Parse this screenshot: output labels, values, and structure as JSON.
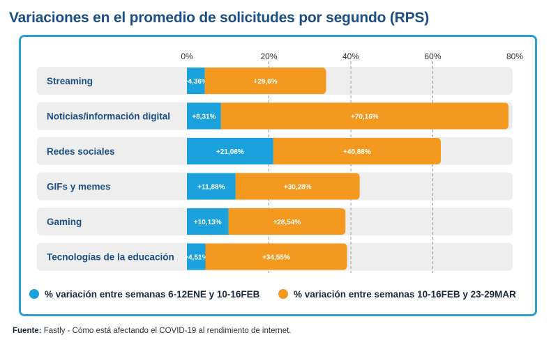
{
  "title": "Variaciones en el promedio de solicitudes por segundo (RPS)",
  "source": {
    "label": "Fuente:",
    "text": " Fastly - Cómo está afectando el COVID-19 al rendimiento de internet."
  },
  "colors": {
    "series1": "#1ba1dc",
    "series2": "#f4991f",
    "row_bg": "#eeeeee",
    "label": "#1b4f86",
    "frame": "#2c9fd6"
  },
  "chart_data": {
    "type": "bar",
    "orientation": "horizontal",
    "stacked": true,
    "title": "Variaciones en el promedio de solicitudes por segundo (RPS)",
    "categories": [
      "Streaming",
      "Noticias/información digital",
      "Redes sociales",
      "GIFs y memes",
      "Gaming",
      "Tecnologías de la educación"
    ],
    "series": [
      {
        "name": "% variación entre semanas 6-12ENE y 10-16FEB",
        "values": [
          4.36,
          8.31,
          21.08,
          11.88,
          10.13,
          4.51
        ],
        "labels": [
          "+4,36%",
          "+8,31%",
          "+21,08%",
          "+11,88%",
          "+10,13%",
          "+4,51%"
        ]
      },
      {
        "name": "% variación entre semanas 10-16FEB y 23-29MAR",
        "values": [
          29.6,
          70.16,
          40.88,
          30.28,
          28.54,
          34.55
        ],
        "labels": [
          "+29,6%",
          "+70,16%",
          "+40,88%",
          "+30,28%",
          "+28,54%",
          "+34,55%"
        ]
      }
    ],
    "xlim": [
      0,
      80
    ],
    "xticks": [
      0,
      20,
      40,
      60,
      80
    ],
    "xtick_labels": [
      "0%",
      "20%",
      "40%",
      "60%",
      "80%"
    ],
    "grid": true,
    "legend_position": "bottom"
  }
}
